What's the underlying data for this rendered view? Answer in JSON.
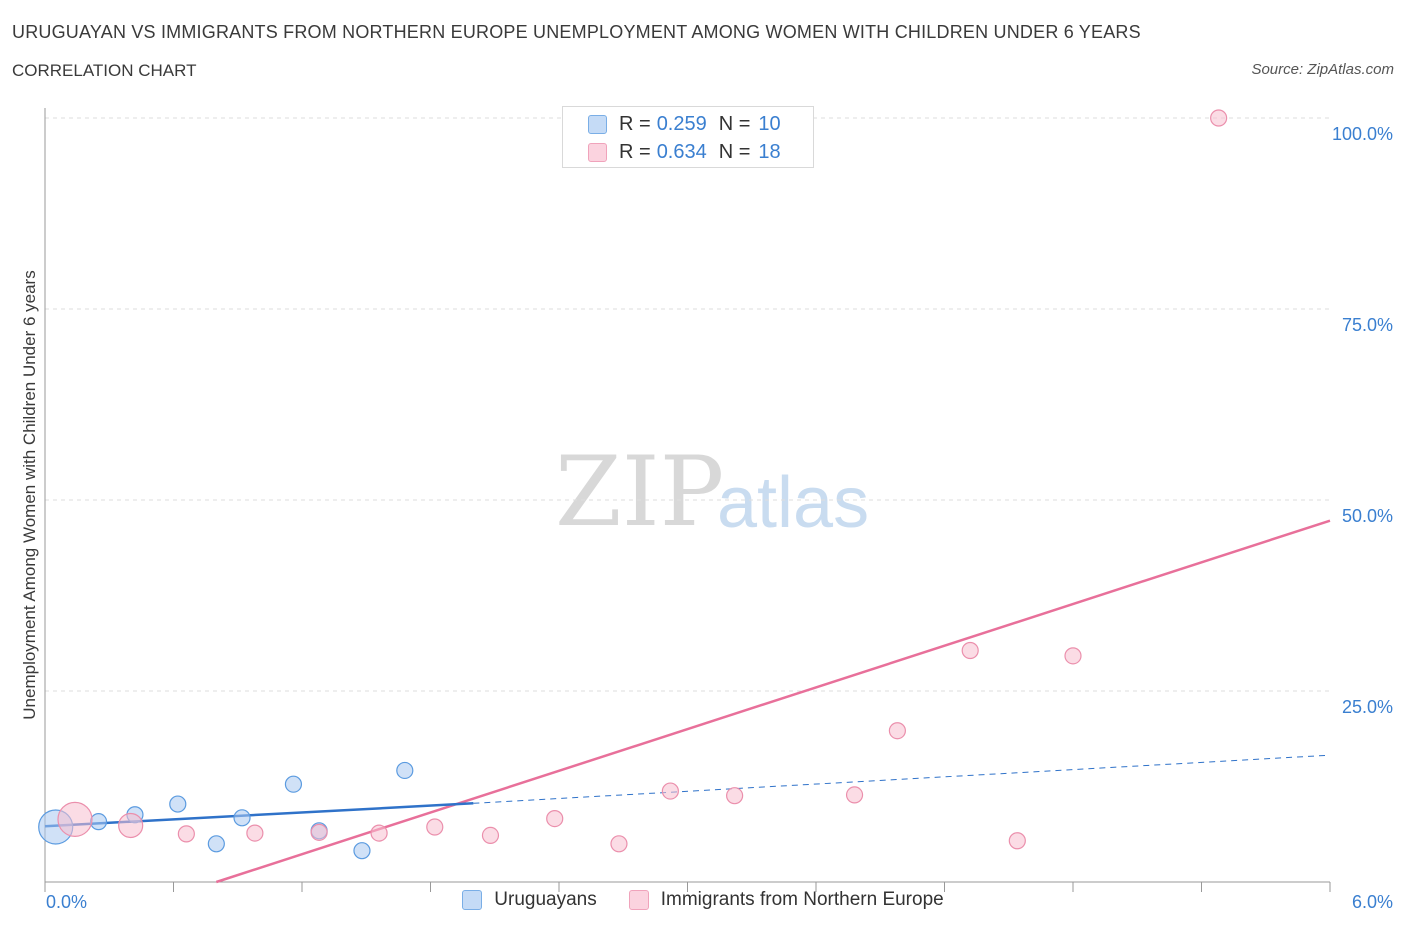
{
  "header": {
    "title": "URUGUAYAN VS IMMIGRANTS FROM NORTHERN EUROPE UNEMPLOYMENT AMONG WOMEN WITH CHILDREN UNDER 6 YEARS",
    "subtitle": "CORRELATION CHART",
    "source": "Source: ZipAtlas.com"
  },
  "watermark": {
    "zip": "ZIP",
    "atlas": "atlas"
  },
  "colors": {
    "blue_fill": "#a9c8f0",
    "blue_stroke": "#5b9be0",
    "blue_line": "#2f72c9",
    "pink_fill": "#f7bfd0",
    "pink_stroke": "#eb8fac",
    "pink_line": "#e8709a",
    "grid": "#dedede",
    "axis": "#999999"
  },
  "legend_top": {
    "rows": [
      {
        "r_label": "R =",
        "r_value": "0.259",
        "n_label": "N =",
        "n_value": "10"
      },
      {
        "r_label": "R =",
        "r_value": "0.634",
        "n_label": "N =",
        "n_value": "18"
      }
    ]
  },
  "legend_bottom": {
    "items": [
      "Uruguayans",
      "Immigrants from Northern Europe"
    ]
  },
  "chart_data": {
    "type": "scatter",
    "title": "URUGUAYAN VS IMMIGRANTS FROM NORTHERN EUROPE UNEMPLOYMENT AMONG WOMEN WITH CHILDREN UNDER 6 YEARS",
    "xlabel": "",
    "ylabel": "Unemployment Among Women with Children Under 6 years",
    "xlim": [
      0,
      6
    ],
    "ylim": [
      0,
      100
    ],
    "x_tick_labels": [
      "0.0%",
      "6.0%"
    ],
    "y_tick_values": [
      25,
      50,
      75,
      100
    ],
    "y_tick_labels": [
      "25.0%",
      "50.0%",
      "75.0%",
      "100.0%"
    ],
    "series": [
      {
        "name": "Uruguayans",
        "r": 0.259,
        "n": 10,
        "points": [
          {
            "x": 0.05,
            "y": 7.2,
            "size": "large"
          },
          {
            "x": 0.25,
            "y": 7.9,
            "size": "normal"
          },
          {
            "x": 0.42,
            "y": 8.8,
            "size": "normal"
          },
          {
            "x": 0.62,
            "y": 10.2,
            "size": "normal"
          },
          {
            "x": 0.8,
            "y": 5.0,
            "size": "normal"
          },
          {
            "x": 0.92,
            "y": 8.4,
            "size": "normal"
          },
          {
            "x": 1.16,
            "y": 12.8,
            "size": "normal"
          },
          {
            "x": 1.28,
            "y": 6.7,
            "size": "normal"
          },
          {
            "x": 1.48,
            "y": 4.1,
            "size": "normal"
          },
          {
            "x": 1.68,
            "y": 14.6,
            "size": "normal"
          }
        ],
        "trend": {
          "x0": 0.0,
          "y0": 7.3,
          "x1": 2.0,
          "y1": 10.3
        },
        "trend_extrapolated": {
          "x0": 2.0,
          "y0": 10.3,
          "x1": 6.0,
          "y1": 16.6
        }
      },
      {
        "name": "Immigrants from Northern Europe",
        "r": 0.634,
        "n": 18,
        "points": [
          {
            "x": 0.14,
            "y": 8.2,
            "size": "large"
          },
          {
            "x": 0.4,
            "y": 7.4,
            "size": "medium"
          },
          {
            "x": 0.66,
            "y": 6.3,
            "size": "normal"
          },
          {
            "x": 0.98,
            "y": 6.4,
            "size": "normal"
          },
          {
            "x": 1.28,
            "y": 6.5,
            "size": "normal"
          },
          {
            "x": 1.56,
            "y": 6.4,
            "size": "normal"
          },
          {
            "x": 1.82,
            "y": 7.2,
            "size": "normal"
          },
          {
            "x": 2.08,
            "y": 6.1,
            "size": "normal"
          },
          {
            "x": 2.38,
            "y": 8.3,
            "size": "normal"
          },
          {
            "x": 2.68,
            "y": 5.0,
            "size": "normal"
          },
          {
            "x": 2.92,
            "y": 11.9,
            "size": "normal"
          },
          {
            "x": 3.22,
            "y": 11.3,
            "size": "normal"
          },
          {
            "x": 3.98,
            "y": 19.8,
            "size": "normal"
          },
          {
            "x": 3.78,
            "y": 11.4,
            "size": "normal"
          },
          {
            "x": 4.32,
            "y": 30.3,
            "size": "normal"
          },
          {
            "x": 4.8,
            "y": 29.6,
            "size": "normal"
          },
          {
            "x": 4.54,
            "y": 5.4,
            "size": "normal"
          },
          {
            "x": 5.48,
            "y": 100.0,
            "size": "normal"
          }
        ],
        "trend": {
          "x0": 0.8,
          "y0": 0.0,
          "x1": 6.0,
          "y1": 47.3
        }
      }
    ]
  }
}
